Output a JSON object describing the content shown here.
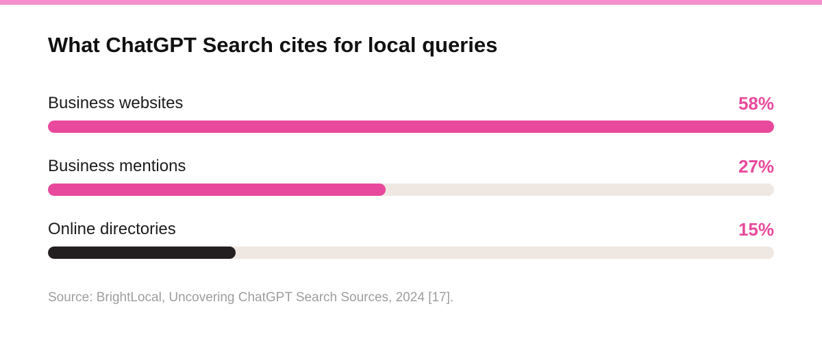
{
  "colors": {
    "top_strip": "#f390cb",
    "accent": "#e8499c",
    "dark": "#231f20",
    "track": "#efe8e2",
    "value_text": "#e8499c",
    "source_text": "#9d9d9d"
  },
  "chart_data": {
    "type": "bar",
    "orientation": "horizontal",
    "title": "What ChatGPT Search cites for local queries",
    "source": "Source: BrightLocal, Uncovering ChatGPT Search Sources, 2024 [17].",
    "categories": [
      "Business websites",
      "Business mentions",
      "Online directories"
    ],
    "values": [
      58,
      27,
      15
    ],
    "value_labels": [
      "58%",
      "27%",
      "15%"
    ],
    "bar_colors": [
      "#e8499c",
      "#e8499c",
      "#231f20"
    ],
    "value_scale_max": 58,
    "grid": false,
    "legend": "none"
  }
}
